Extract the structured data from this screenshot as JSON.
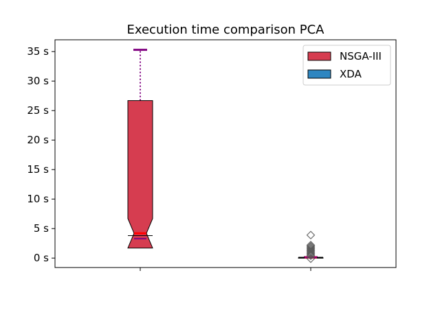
{
  "chart_data": {
    "type": "box",
    "title": "Execution time comparison PCA",
    "xlabel": "",
    "ylabel": "",
    "y_unit_suffix": " s",
    "ylim": [
      -1.6,
      37.0
    ],
    "yticks": [
      0,
      5,
      10,
      15,
      20,
      25,
      30,
      35
    ],
    "ytick_labels": [
      "0 s",
      "5 s",
      "10 s",
      "15 s",
      "20 s",
      "25 s",
      "30 s",
      "35 s"
    ],
    "notched": true,
    "grid": false,
    "legend_position": "top-right",
    "legend": [
      "NSGA-III",
      "XDA"
    ],
    "series": [
      {
        "name": "NSGA-III",
        "color": "#d63d50",
        "median": 4.2,
        "q1": 3.8,
        "q3": 26.7,
        "notch_low": 1.7,
        "notch_high": 6.7,
        "whisker_low": 3.3,
        "whisker_high": 35.3,
        "mean": 3.3,
        "outliers": []
      },
      {
        "name": "XDA",
        "color": "#2e86c1",
        "median": 0.1,
        "q1": 0.0,
        "q3": 0.15,
        "notch_low": 0.05,
        "notch_high": 0.15,
        "whisker_low": 0.0,
        "whisker_high": 0.15,
        "mean": 0.1,
        "outliers": [
          3.9,
          2.2,
          2.0,
          1.8,
          1.6,
          1.4,
          1.2,
          1.0,
          0.8,
          0.6,
          0.4,
          -0.1
        ]
      }
    ]
  }
}
